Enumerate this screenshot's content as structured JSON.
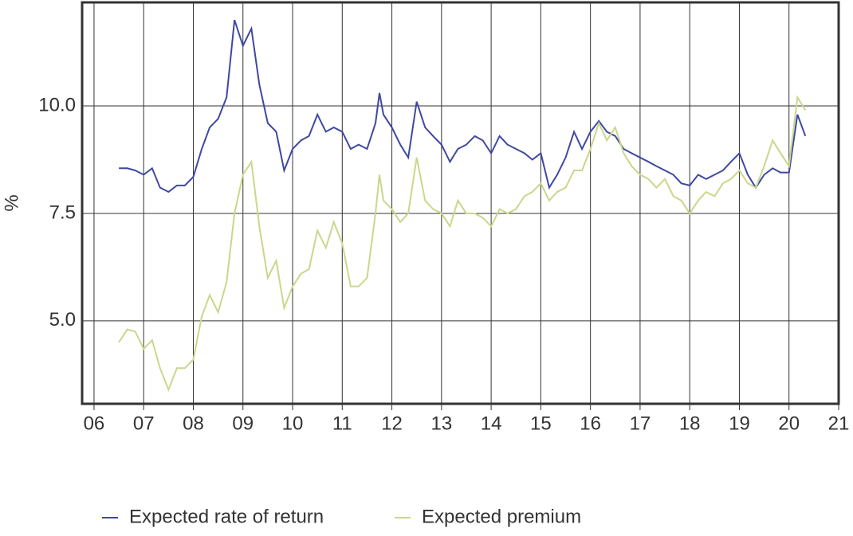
{
  "chart_data": {
    "type": "line",
    "y_label": "%",
    "x": [
      2006.5,
      2006.67,
      2006.83,
      2007.0,
      2007.17,
      2007.33,
      2007.5,
      2007.67,
      2007.83,
      2008.0,
      2008.17,
      2008.33,
      2008.5,
      2008.67,
      2008.83,
      2009.0,
      2009.17,
      2009.33,
      2009.5,
      2009.67,
      2009.83,
      2010.0,
      2010.17,
      2010.33,
      2010.5,
      2010.67,
      2010.83,
      2011.0,
      2011.17,
      2011.33,
      2011.5,
      2011.67,
      2011.75,
      2011.83,
      2012.0,
      2012.17,
      2012.33,
      2012.5,
      2012.67,
      2012.83,
      2013.0,
      2013.17,
      2013.33,
      2013.5,
      2013.67,
      2013.83,
      2014.0,
      2014.17,
      2014.33,
      2014.5,
      2014.67,
      2014.83,
      2015.0,
      2015.17,
      2015.33,
      2015.5,
      2015.67,
      2015.83,
      2016.0,
      2016.17,
      2016.33,
      2016.5,
      2016.67,
      2016.83,
      2017.0,
      2017.17,
      2017.33,
      2017.5,
      2017.67,
      2017.83,
      2018.0,
      2018.17,
      2018.33,
      2018.5,
      2018.67,
      2018.83,
      2019.0,
      2019.17,
      2019.33,
      2019.5,
      2019.67,
      2019.83,
      2020.0,
      2020.17,
      2020.33
    ],
    "series": [
      {
        "name": "Expected rate of return",
        "color": "#3f48a0",
        "values": [
          8.55,
          8.55,
          8.5,
          8.4,
          8.55,
          8.1,
          8.0,
          8.15,
          8.15,
          8.35,
          9.0,
          9.5,
          9.7,
          10.2,
          12.0,
          11.4,
          11.8,
          10.5,
          9.6,
          9.4,
          8.5,
          9.0,
          9.2,
          9.3,
          9.8,
          9.4,
          9.5,
          9.4,
          9.0,
          9.1,
          9.0,
          9.6,
          10.3,
          9.8,
          9.5,
          9.1,
          8.8,
          10.1,
          9.5,
          9.3,
          9.1,
          8.7,
          9.0,
          9.1,
          9.3,
          9.2,
          8.9,
          9.3,
          9.1,
          9.0,
          8.9,
          8.75,
          8.9,
          8.1,
          8.4,
          8.8,
          9.4,
          9.0,
          9.4,
          9.65,
          9.4,
          9.3,
          9.0,
          8.9,
          8.8,
          8.7,
          8.6,
          8.5,
          8.4,
          8.2,
          8.15,
          8.4,
          8.3,
          8.4,
          8.5,
          8.7,
          8.9,
          8.4,
          8.1,
          8.4,
          8.55,
          8.45,
          8.45,
          9.8,
          9.3
        ]
      },
      {
        "name": "Expected premium",
        "color": "#c8d88a",
        "values": [
          4.5,
          4.8,
          4.75,
          4.35,
          4.55,
          3.9,
          3.4,
          3.9,
          3.9,
          4.1,
          5.1,
          5.6,
          5.2,
          5.9,
          7.5,
          8.4,
          8.7,
          7.2,
          6.0,
          6.4,
          5.3,
          5.8,
          6.1,
          6.2,
          7.1,
          6.7,
          7.3,
          6.8,
          5.8,
          5.8,
          6.0,
          7.5,
          8.4,
          7.8,
          7.6,
          7.3,
          7.5,
          8.8,
          7.8,
          7.6,
          7.5,
          7.2,
          7.8,
          7.5,
          7.5,
          7.4,
          7.2,
          7.6,
          7.5,
          7.6,
          7.9,
          8.0,
          8.2,
          7.8,
          8.0,
          8.1,
          8.5,
          8.5,
          9.0,
          9.6,
          9.2,
          9.5,
          8.9,
          8.6,
          8.4,
          8.3,
          8.1,
          8.3,
          7.9,
          7.8,
          7.5,
          7.8,
          8.0,
          7.9,
          8.2,
          8.3,
          8.5,
          8.2,
          8.1,
          8.6,
          9.2,
          8.9,
          8.6,
          10.2,
          9.9
        ]
      }
    ],
    "xlim": [
      2005.76,
      2021
    ],
    "xticks": [
      {
        "value": 2006,
        "label": "06"
      },
      {
        "value": 2007,
        "label": "07"
      },
      {
        "value": 2008,
        "label": "08"
      },
      {
        "value": 2009,
        "label": "09"
      },
      {
        "value": 2010,
        "label": "10"
      },
      {
        "value": 2011,
        "label": "11"
      },
      {
        "value": 2012,
        "label": "12"
      },
      {
        "value": 2013,
        "label": "13"
      },
      {
        "value": 2014,
        "label": "14"
      },
      {
        "value": 2015,
        "label": "15"
      },
      {
        "value": 2016,
        "label": "16"
      },
      {
        "value": 2017,
        "label": "17"
      },
      {
        "value": 2018,
        "label": "18"
      },
      {
        "value": 2019,
        "label": "19"
      },
      {
        "value": 2020,
        "label": "20"
      },
      {
        "value": 2021,
        "label": "21"
      }
    ],
    "ylim": [
      3.07,
      12.41
    ],
    "yticks": [
      {
        "value": 5,
        "label": "5.0"
      },
      {
        "value": 7.5,
        "label": "7.5"
      },
      {
        "value": 10,
        "label": "10.0"
      }
    ],
    "grid": true,
    "legend": "bottom"
  }
}
